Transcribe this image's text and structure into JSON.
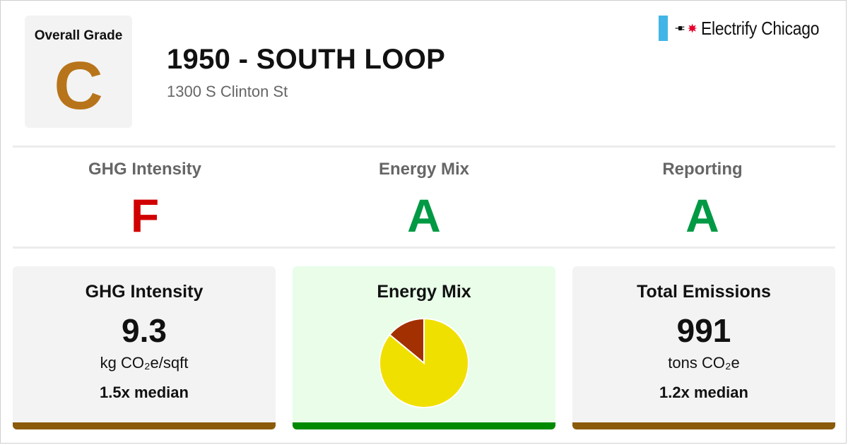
{
  "overall": {
    "label": "Overall Grade",
    "grade": "C",
    "color": "#b8741a"
  },
  "building": {
    "title": "1950 - SOUTH LOOP",
    "address": "1300 S Clinton St"
  },
  "logo": {
    "name": "Electrify Chicago",
    "flag_color": "#41b6e6",
    "star_color": "#e4002b",
    "icons": [
      "flag-icon",
      "plug-icon",
      "star-icon"
    ]
  },
  "grades": [
    {
      "label": "GHG Intensity",
      "grade": "F",
      "color": "#d10000"
    },
    {
      "label": "Energy Mix",
      "grade": "A",
      "color": "#009944"
    },
    {
      "label": "Reporting",
      "grade": "A",
      "color": "#009944"
    }
  ],
  "cards": [
    {
      "heading": "GHG Intensity",
      "value": "9.3",
      "unit": "kg CO₂e/sqft",
      "median": "1.5x median",
      "bar_color": "#8b5a0a"
    },
    {
      "heading": "Energy Mix",
      "bar_color": "#008a00"
    },
    {
      "heading": "Total Emissions",
      "value": "991",
      "unit": "tons CO₂e",
      "median": "1.2x median",
      "bar_color": "#8b5a0a"
    }
  ],
  "chart_data": {
    "type": "pie",
    "title": "Energy Mix",
    "series": [
      {
        "name": "",
        "value": 86,
        "color": "#f0e000"
      },
      {
        "name": "",
        "value": 14,
        "color": "#a33000"
      }
    ]
  }
}
